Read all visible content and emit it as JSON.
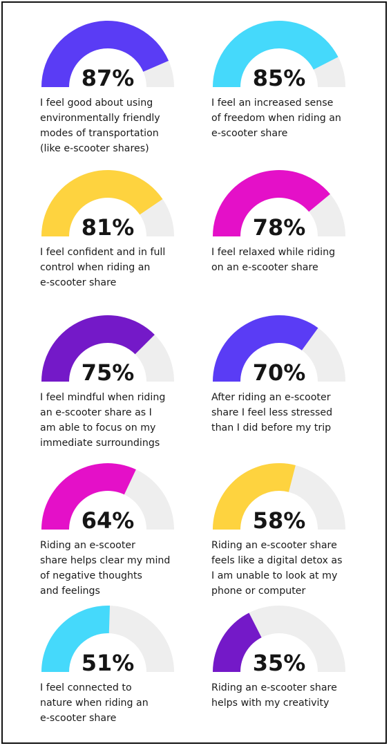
{
  "colors": {
    "blue_violet": "#5a3cf5",
    "cyan": "#45d9fb",
    "yellow": "#fed33f",
    "magenta": "#e410c8",
    "purple": "#7419c8",
    "track": "#eeeeee",
    "text": "#151515"
  },
  "chart_data": {
    "type": "gauge",
    "items": [
      {
        "value": 87,
        "value_label": "87%",
        "label": "I feel good about using\nenvironmentally friendly\nmodes of transportation\n(like e-scooter shares)",
        "color": "#5a3cf5"
      },
      {
        "value": 85,
        "value_label": "85%",
        "label": "I feel an increased sense\nof freedom when riding an\ne-scooter share",
        "color": "#45d9fb"
      },
      {
        "value": 81,
        "value_label": "81%",
        "label": "I feel confident and in full\ncontrol when riding an\ne-scooter share",
        "color": "#fed33f"
      },
      {
        "value": 78,
        "value_label": "78%",
        "label": "I feel relaxed while riding\non an e-scooter share",
        "color": "#e410c8"
      },
      {
        "value": 75,
        "value_label": "75%",
        "label": "I feel mindful when riding\nan e-scooter share as I\nam able to focus on my\nimmediate surroundings",
        "color": "#7419c8"
      },
      {
        "value": 70,
        "value_label": "70%",
        "label": "After riding an e-scooter\nshare I feel less stressed\nthan I did before my trip",
        "color": "#5a3cf5"
      },
      {
        "value": 64,
        "value_label": "64%",
        "label": "Riding an e-scooter\nshare helps clear my mind\nof negative thoughts\nand feelings",
        "color": "#e410c8"
      },
      {
        "value": 58,
        "value_label": "58%",
        "label": "Riding an e-scooter share\nfeels like a digital detox as\nI am unable to look at my\nphone or computer",
        "color": "#fed33f"
      },
      {
        "value": 51,
        "value_label": "51%",
        "label": "I feel connected to\nnature when riding an\ne-scooter share",
        "color": "#45d9fb"
      },
      {
        "value": 35,
        "value_label": "35%",
        "label": "Riding an e-scooter share\nhelps with my creativity",
        "color": "#7419c8"
      }
    ]
  }
}
